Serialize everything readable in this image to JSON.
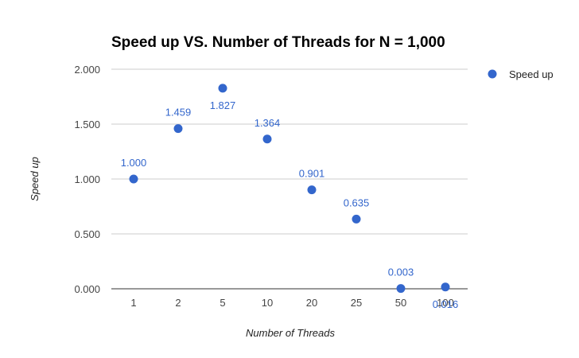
{
  "chart_data": {
    "type": "scatter",
    "title": "Speed up VS. Number of Threads for N = 1,000",
    "xlabel": "Number of Threads",
    "ylabel": "Speed up",
    "categories": [
      "1",
      "2",
      "5",
      "10",
      "20",
      "25",
      "50",
      "100"
    ],
    "series": [
      {
        "name": "Speed up",
        "values": [
          1.0,
          1.459,
          1.827,
          1.364,
          0.901,
          0.635,
          0.003,
          0.016
        ],
        "data_labels": [
          "1.000",
          "1.459",
          "1.827",
          "1.364",
          "0.901",
          "0.635",
          "0.003",
          "0.016"
        ]
      }
    ],
    "ylim": [
      0,
      2
    ],
    "y_ticks": [
      "0.000",
      "0.500",
      "1.000",
      "1.500",
      "2.000"
    ],
    "grid": true,
    "legend_position": "right",
    "colors": {
      "series": "#3366cc",
      "grid": "#cccccc",
      "axis": "#333333"
    }
  }
}
